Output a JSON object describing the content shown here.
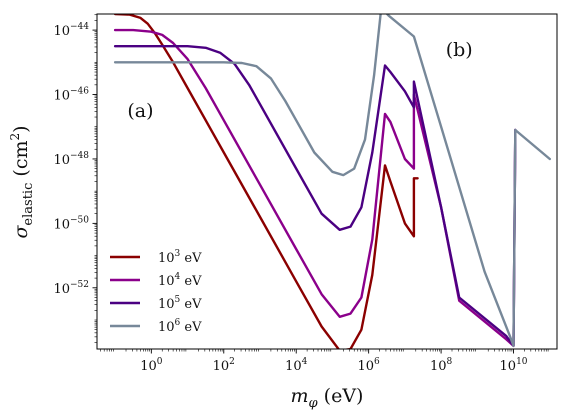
{
  "chart_data": {
    "type": "line",
    "title": "",
    "xlabel": "m_φ (eV)",
    "ylabel": "σ_elastic (cm²)",
    "x_scale": "log",
    "y_scale": "log",
    "xlim_log10": [
      -1.5,
      11.2
    ],
    "ylim_log10": [
      -53.9,
      -43.5
    ],
    "x_ticks": [
      {
        "exp": 0,
        "label_base": "10",
        "label_exp": "0"
      },
      {
        "exp": 2,
        "label_base": "10",
        "label_exp": "2"
      },
      {
        "exp": 4,
        "label_base": "10",
        "label_exp": "4"
      },
      {
        "exp": 6,
        "label_base": "10",
        "label_exp": "6"
      },
      {
        "exp": 8,
        "label_base": "10",
        "label_exp": "8"
      },
      {
        "exp": 10,
        "label_base": "10",
        "label_exp": "10"
      }
    ],
    "y_ticks": [
      {
        "exp": -44,
        "label_base": "10",
        "label_exp": "−44"
      },
      {
        "exp": -46,
        "label_base": "10",
        "label_exp": "−46"
      },
      {
        "exp": -48,
        "label_base": "10",
        "label_exp": "−48"
      },
      {
        "exp": -50,
        "label_base": "10",
        "label_exp": "−50"
      },
      {
        "exp": -52,
        "label_base": "10",
        "label_exp": "−52"
      }
    ],
    "annotations": [
      {
        "text": "(a)",
        "x_log": -0.3,
        "y_log": -46.7
      },
      {
        "text": "(b)",
        "x_log": 8.5,
        "y_log": -44.8
      }
    ],
    "legend_position": "lower-left",
    "series": [
      {
        "name": "10³ eV",
        "name_base": "10",
        "name_exp": "3",
        "name_unit": " eV",
        "color": "#8b0000",
        "points_log10": [
          [
            -1.0,
            -43.5
          ],
          [
            -0.6,
            -43.52
          ],
          [
            -0.3,
            -43.62
          ],
          [
            -0.1,
            -43.8
          ],
          [
            0.1,
            -44.1
          ],
          [
            0.3,
            -44.45
          ],
          [
            0.6,
            -45.0
          ],
          [
            1.0,
            -45.8
          ],
          [
            2.0,
            -47.8
          ],
          [
            3.0,
            -49.8
          ],
          [
            4.0,
            -51.8
          ],
          [
            4.7,
            -53.2
          ],
          [
            5.2,
            -53.95
          ],
          [
            5.5,
            -53.9
          ],
          [
            5.8,
            -53.3
          ],
          [
            6.1,
            -51.6
          ],
          [
            6.45,
            -48.2
          ],
          [
            6.6,
            -48.7
          ],
          [
            7.0,
            -50.0
          ],
          [
            7.25,
            -50.4
          ],
          [
            7.25,
            -48.6
          ],
          [
            7.35,
            -48.6
          ]
        ]
      },
      {
        "name": "10⁴ eV",
        "name_base": "10",
        "name_exp": "4",
        "name_unit": " eV",
        "color": "#8b008b",
        "points_log10": [
          [
            -1.0,
            -44.0
          ],
          [
            -0.5,
            -44.0
          ],
          [
            0.0,
            -44.05
          ],
          [
            0.3,
            -44.15
          ],
          [
            0.6,
            -44.4
          ],
          [
            1.0,
            -44.9
          ],
          [
            1.5,
            -45.8
          ],
          [
            2.0,
            -46.8
          ],
          [
            3.0,
            -48.8
          ],
          [
            4.0,
            -50.8
          ],
          [
            4.7,
            -52.2
          ],
          [
            5.2,
            -52.9
          ],
          [
            5.5,
            -52.8
          ],
          [
            5.8,
            -52.3
          ],
          [
            6.1,
            -50.5
          ],
          [
            6.45,
            -46.6
          ],
          [
            6.6,
            -46.85
          ],
          [
            7.0,
            -48.0
          ],
          [
            7.25,
            -48.3
          ],
          [
            7.25,
            -46.0
          ],
          [
            8.0,
            -49.5
          ],
          [
            8.5,
            -52.4
          ],
          [
            9.8,
            -53.6
          ],
          [
            10.0,
            -53.8
          ],
          [
            10.05,
            -47.1
          ]
        ]
      },
      {
        "name": "10⁵ eV",
        "name_base": "10",
        "name_exp": "5",
        "name_unit": " eV",
        "color": "#4b0082",
        "points_log10": [
          [
            -1.0,
            -44.5
          ],
          [
            0.0,
            -44.5
          ],
          [
            1.0,
            -44.5
          ],
          [
            1.5,
            -44.55
          ],
          [
            1.9,
            -44.7
          ],
          [
            2.3,
            -45.05
          ],
          [
            2.7,
            -45.7
          ],
          [
            3.0,
            -46.3
          ],
          [
            4.0,
            -48.3
          ],
          [
            4.7,
            -49.7
          ],
          [
            5.2,
            -50.2
          ],
          [
            5.5,
            -50.1
          ],
          [
            5.8,
            -49.5
          ],
          [
            6.1,
            -47.8
          ],
          [
            6.45,
            -45.1
          ],
          [
            6.6,
            -45.3
          ],
          [
            7.0,
            -45.9
          ],
          [
            7.25,
            -46.4
          ],
          [
            7.25,
            -45.6
          ],
          [
            8.0,
            -49.5
          ],
          [
            8.5,
            -52.3
          ],
          [
            9.8,
            -53.5
          ],
          [
            10.0,
            -53.8
          ],
          [
            10.05,
            -47.1
          ]
        ]
      },
      {
        "name": "10⁶ eV",
        "name_base": "10",
        "name_exp": "6",
        "name_unit": " eV",
        "color": "#778899",
        "points_log10": [
          [
            -1.0,
            -45.0
          ],
          [
            0.0,
            -45.0
          ],
          [
            1.0,
            -45.0
          ],
          [
            2.0,
            -45.0
          ],
          [
            2.5,
            -45.02
          ],
          [
            2.9,
            -45.12
          ],
          [
            3.3,
            -45.5
          ],
          [
            3.7,
            -46.2
          ],
          [
            4.0,
            -46.8
          ],
          [
            4.5,
            -47.8
          ],
          [
            5.0,
            -48.4
          ],
          [
            5.3,
            -48.5
          ],
          [
            5.6,
            -48.3
          ],
          [
            5.9,
            -47.4
          ],
          [
            6.15,
            -45.4
          ],
          [
            6.35,
            -43.3
          ],
          [
            6.55,
            -43.55
          ],
          [
            7.25,
            -44.2
          ],
          [
            8.0,
            -47.0
          ],
          [
            9.2,
            -51.5
          ],
          [
            9.9,
            -53.5
          ],
          [
            10.0,
            -53.8
          ],
          [
            10.05,
            -47.1
          ],
          [
            11.0,
            -48.0
          ]
        ]
      }
    ]
  }
}
